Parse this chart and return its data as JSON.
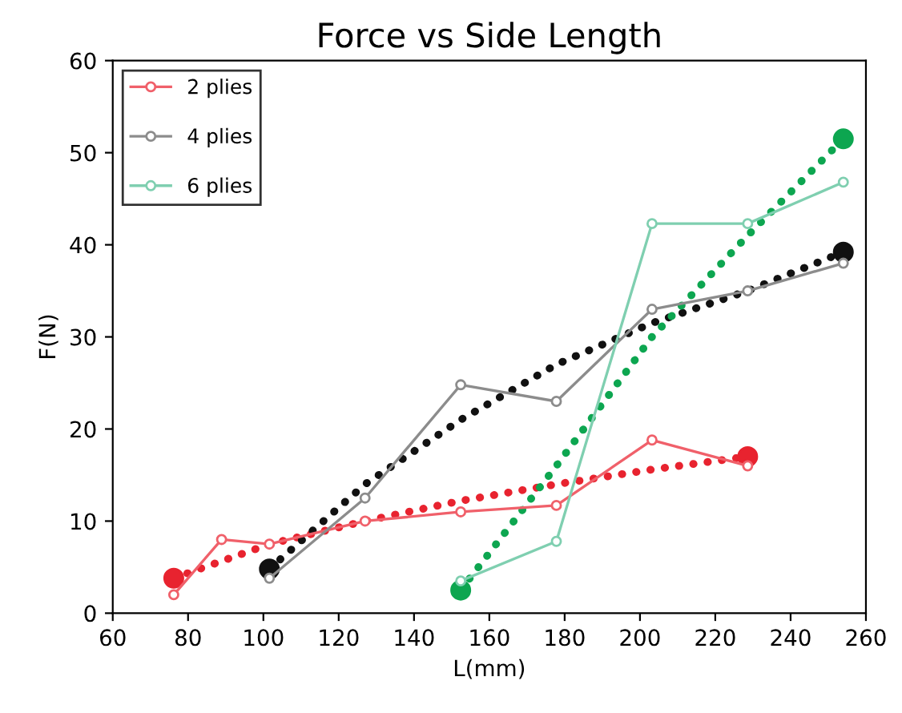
{
  "chart_data": {
    "type": "line",
    "title": "Force vs Side Length",
    "xlabel": "L(mm)",
    "ylabel": "F(N)",
    "xlim": [
      60,
      260
    ],
    "xticks": [
      60,
      80,
      100,
      120,
      140,
      160,
      180,
      200,
      220,
      240,
      260
    ],
    "ylim": [
      0,
      60
    ],
    "yticks": [
      0,
      10,
      20,
      30,
      40,
      50,
      60
    ],
    "grid": false,
    "legend": "top left",
    "marker": "circle",
    "line_style": "solid",
    "series": [
      {
        "name": "2 plies",
        "color": "#f0606a",
        "x": [
          76.2,
          88.9,
          101.6,
          127,
          152.4,
          177.8,
          203.2,
          228.6
        ],
        "values": [
          2,
          8,
          7.5,
          10,
          11,
          11.7,
          18.8,
          16
        ]
      },
      {
        "name": "4 plies",
        "color": "#8c8c8c",
        "x": [
          101.6,
          127,
          152.4,
          177.8,
          203.2,
          228.6,
          254
        ],
        "values": [
          3.8,
          12.5,
          24.8,
          23,
          33,
          35,
          38
        ]
      },
      {
        "name": "6 plies",
        "color": "#7fcfb0",
        "x": [
          152.4,
          177.8,
          203.2,
          228.6,
          254
        ],
        "values": [
          3.5,
          7.8,
          42.3,
          42.3,
          46.8
        ]
      },
      {
        "type": "scatter",
        "color": "#e8232f",
        "x": [
          76.2,
          228.6
        ],
        "values": [
          3.8,
          17
        ]
      },
      {
        "type": "scatter",
        "color": "#111111",
        "x": [
          101.6,
          254
        ],
        "values": [
          4.8,
          39.2
        ]
      },
      {
        "type": "scatter",
        "color": "#0da650",
        "x": [
          152.4,
          254
        ],
        "values": [
          2.5,
          51.5
        ]
      },
      {
        "color": "#e8232f",
        "line_style": "dotted",
        "marker": "none",
        "x": [
          76.2,
          101.6,
          127,
          152.4,
          177.8,
          203.2,
          228.6
        ],
        "values": [
          3.8,
          7.5,
          10,
          12.2,
          14,
          15.6,
          17
        ]
      },
      {
        "color": "#111111",
        "line_style": "dotted",
        "marker": "none",
        "x": [
          101.6,
          127,
          152.4,
          177.8,
          203.2,
          228.6,
          254
        ],
        "values": [
          4.8,
          14,
          21,
          27,
          31.5,
          35,
          39.2
        ]
      },
      {
        "color": "#0da650",
        "line_style": "dotted",
        "marker": "none",
        "x": [
          152.4,
          177.8,
          203.2,
          228.6,
          254
        ],
        "values": [
          2.5,
          16,
          30,
          41,
          51.5
        ]
      }
    ]
  }
}
